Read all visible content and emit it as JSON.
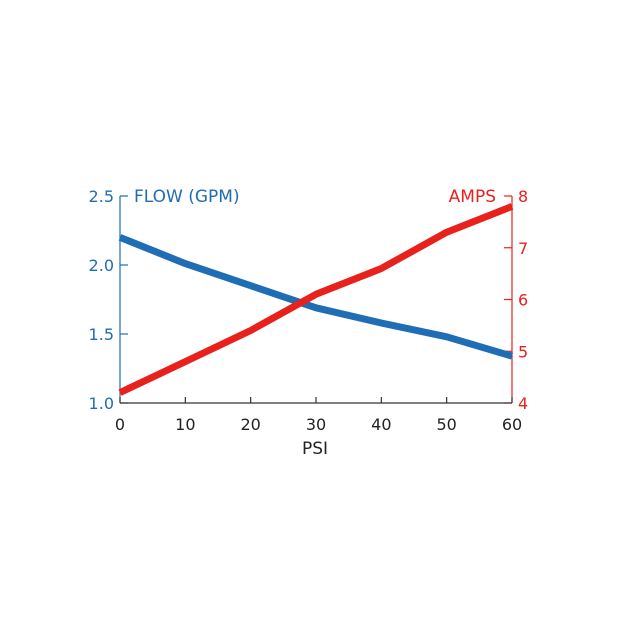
{
  "chart_data": {
    "type": "line",
    "title": "",
    "xlabel": "PSI",
    "xlim": [
      0,
      60
    ],
    "x_ticks": [
      0,
      10,
      20,
      30,
      40,
      50,
      60
    ],
    "grid": false,
    "y_left": {
      "label": "FLOW (GPM)",
      "range": [
        1.0,
        2.5
      ],
      "ticks": [
        "1.0",
        "1.5",
        "2.0",
        "2.5"
      ],
      "color": "#1f6db5"
    },
    "y_right": {
      "label": "AMPS",
      "range": [
        4,
        8
      ],
      "ticks": [
        "4",
        "5",
        "6",
        "7",
        "8"
      ],
      "color": "#e8211d"
    },
    "series": [
      {
        "name": "FLOW (GPM)",
        "axis": "left",
        "color": "#1f6db5",
        "x": [
          0,
          10,
          20,
          30,
          40,
          50,
          60
        ],
        "values": [
          2.2,
          2.01,
          1.85,
          1.69,
          1.58,
          1.48,
          1.34
        ]
      },
      {
        "name": "AMPS",
        "axis": "right",
        "color": "#e8211d",
        "x": [
          0,
          10,
          20,
          30,
          40,
          50,
          60
        ],
        "values": [
          4.2,
          4.8,
          5.4,
          6.1,
          6.6,
          7.3,
          7.8
        ]
      }
    ]
  }
}
